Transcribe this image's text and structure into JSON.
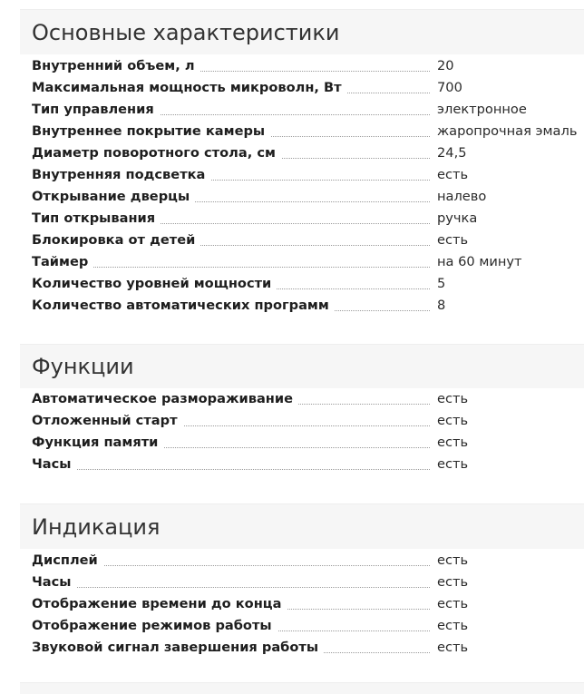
{
  "sections": [
    {
      "title": "Основные характеристики",
      "rows": [
        {
          "label": "Внутренний объем, л",
          "value": "20"
        },
        {
          "label": "Максимальная мощность микроволн, Вт",
          "value": "700"
        },
        {
          "label": "Тип управления",
          "value": "электронное"
        },
        {
          "label": "Внутреннее покрытие камеры",
          "value": "жаропрочная эмаль"
        },
        {
          "label": "Диаметр поворотного стола, см",
          "value": "24,5"
        },
        {
          "label": "Внутренняя подсветка",
          "value": "есть"
        },
        {
          "label": "Открывание дверцы",
          "value": "налево"
        },
        {
          "label": "Тип открывания",
          "value": "ручка"
        },
        {
          "label": "Блокировка от детей",
          "value": "есть"
        },
        {
          "label": "Таймер",
          "value": "на 60 минут"
        },
        {
          "label": "Количество уровней мощности",
          "value": "5"
        },
        {
          "label": "Количество автоматических программ",
          "value": "8"
        }
      ]
    },
    {
      "title": "Функции",
      "rows": [
        {
          "label": "Автоматическое размораживание",
          "value": "есть"
        },
        {
          "label": "Отложенный старт",
          "value": "есть"
        },
        {
          "label": "Функция памяти",
          "value": "есть"
        },
        {
          "label": "Часы",
          "value": "есть"
        }
      ]
    },
    {
      "title": "Индикация",
      "rows": [
        {
          "label": "Дисплей",
          "value": "есть"
        },
        {
          "label": "Часы",
          "value": "есть"
        },
        {
          "label": "Отображение времени до конца",
          "value": "есть"
        },
        {
          "label": "Отображение режимов работы",
          "value": "есть"
        },
        {
          "label": "Звуковой сигнал завершения работы",
          "value": "есть"
        }
      ]
    }
  ]
}
